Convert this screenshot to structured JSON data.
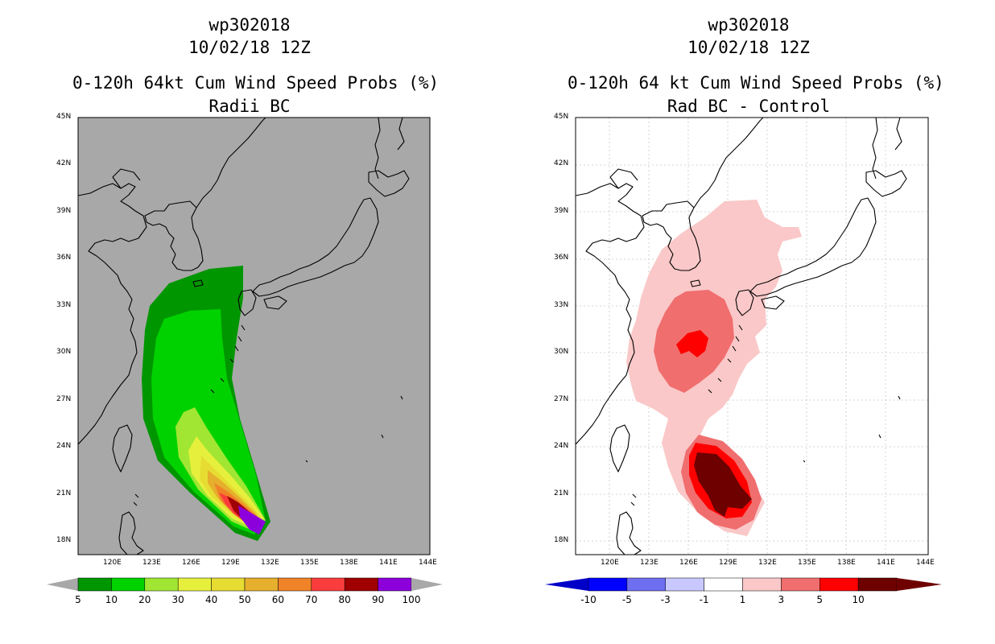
{
  "left_panel": {
    "title_line1": "wp302018",
    "title_line2": "10/02/18 12Z",
    "title_line3": "0-120h 64kt Cum Wind Speed Probs (%)",
    "subtitle": "Radii BC",
    "colorbar": {
      "labels": [
        "5",
        "10",
        "20",
        "30",
        "40",
        "50",
        "60",
        "70",
        "80",
        "90",
        "100"
      ],
      "colors": [
        "#009600",
        "#00d200",
        "#a0e632",
        "#e6f03c",
        "#e6dc32",
        "#e6af2d",
        "#f08228",
        "#fa3c3c",
        "#a00000",
        "#8c00dc"
      ]
    }
  },
  "right_panel": {
    "title_line1": "wp302018",
    "title_line2": "10/02/18 12Z",
    "title_line3": "0-120h 64 kt Cum Wind Speed Probs (%)",
    "subtitle": "Rad BC - Control",
    "colorbar": {
      "labels": [
        "-10",
        "-5",
        "-3",
        "-1",
        "1",
        "3",
        "5",
        "10"
      ],
      "colors": [
        "#0000c8",
        "#0000ff",
        "#6e6ef0",
        "#c8c8ff",
        "#ffffff",
        "#fac8c8",
        "#f06e6e",
        "#ff0000",
        "#6e0000"
      ]
    }
  },
  "axes": {
    "lat_labels": [
      "45N",
      "42N",
      "39N",
      "36N",
      "33N",
      "30N",
      "27N",
      "24N",
      "21N",
      "18N"
    ],
    "lon_labels": [
      "120E",
      "123E",
      "126E",
      "129E",
      "132E",
      "135E",
      "138E",
      "141E",
      "144E"
    ]
  },
  "colors": {
    "land_bg": "#a8a8a8",
    "grid": "#c8c8c8"
  }
}
